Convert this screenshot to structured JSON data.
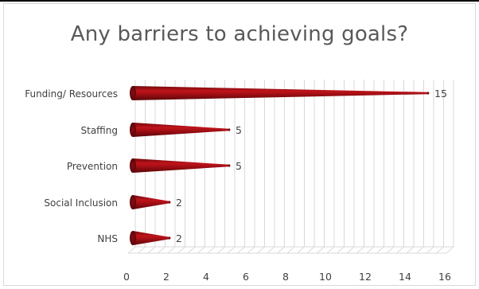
{
  "chart_data": {
    "type": "bar",
    "orientation": "horizontal",
    "title": "Any barriers to achieving goals?",
    "categories": [
      "Funding/ Resources",
      "Staffing",
      "Prevention",
      "Social Inclusion",
      "NHS"
    ],
    "values": [
      15,
      5,
      5,
      2,
      2
    ],
    "data_labels": [
      "15",
      "5",
      "5",
      "2",
      "2"
    ],
    "xlim": [
      0,
      16
    ],
    "x_ticks": [
      0,
      2,
      4,
      6,
      8,
      10,
      12,
      14,
      16
    ],
    "x_tick_labels": [
      "0",
      "2",
      "4",
      "6",
      "8",
      "10",
      "12",
      "14",
      "16"
    ],
    "grid": true,
    "bar_shape": "cone",
    "colors": {
      "bar": "#a50f15",
      "bar_dark": "#6e0a0e",
      "grid": "#d9d9d9",
      "text": "#404040",
      "title": "#595959"
    }
  }
}
